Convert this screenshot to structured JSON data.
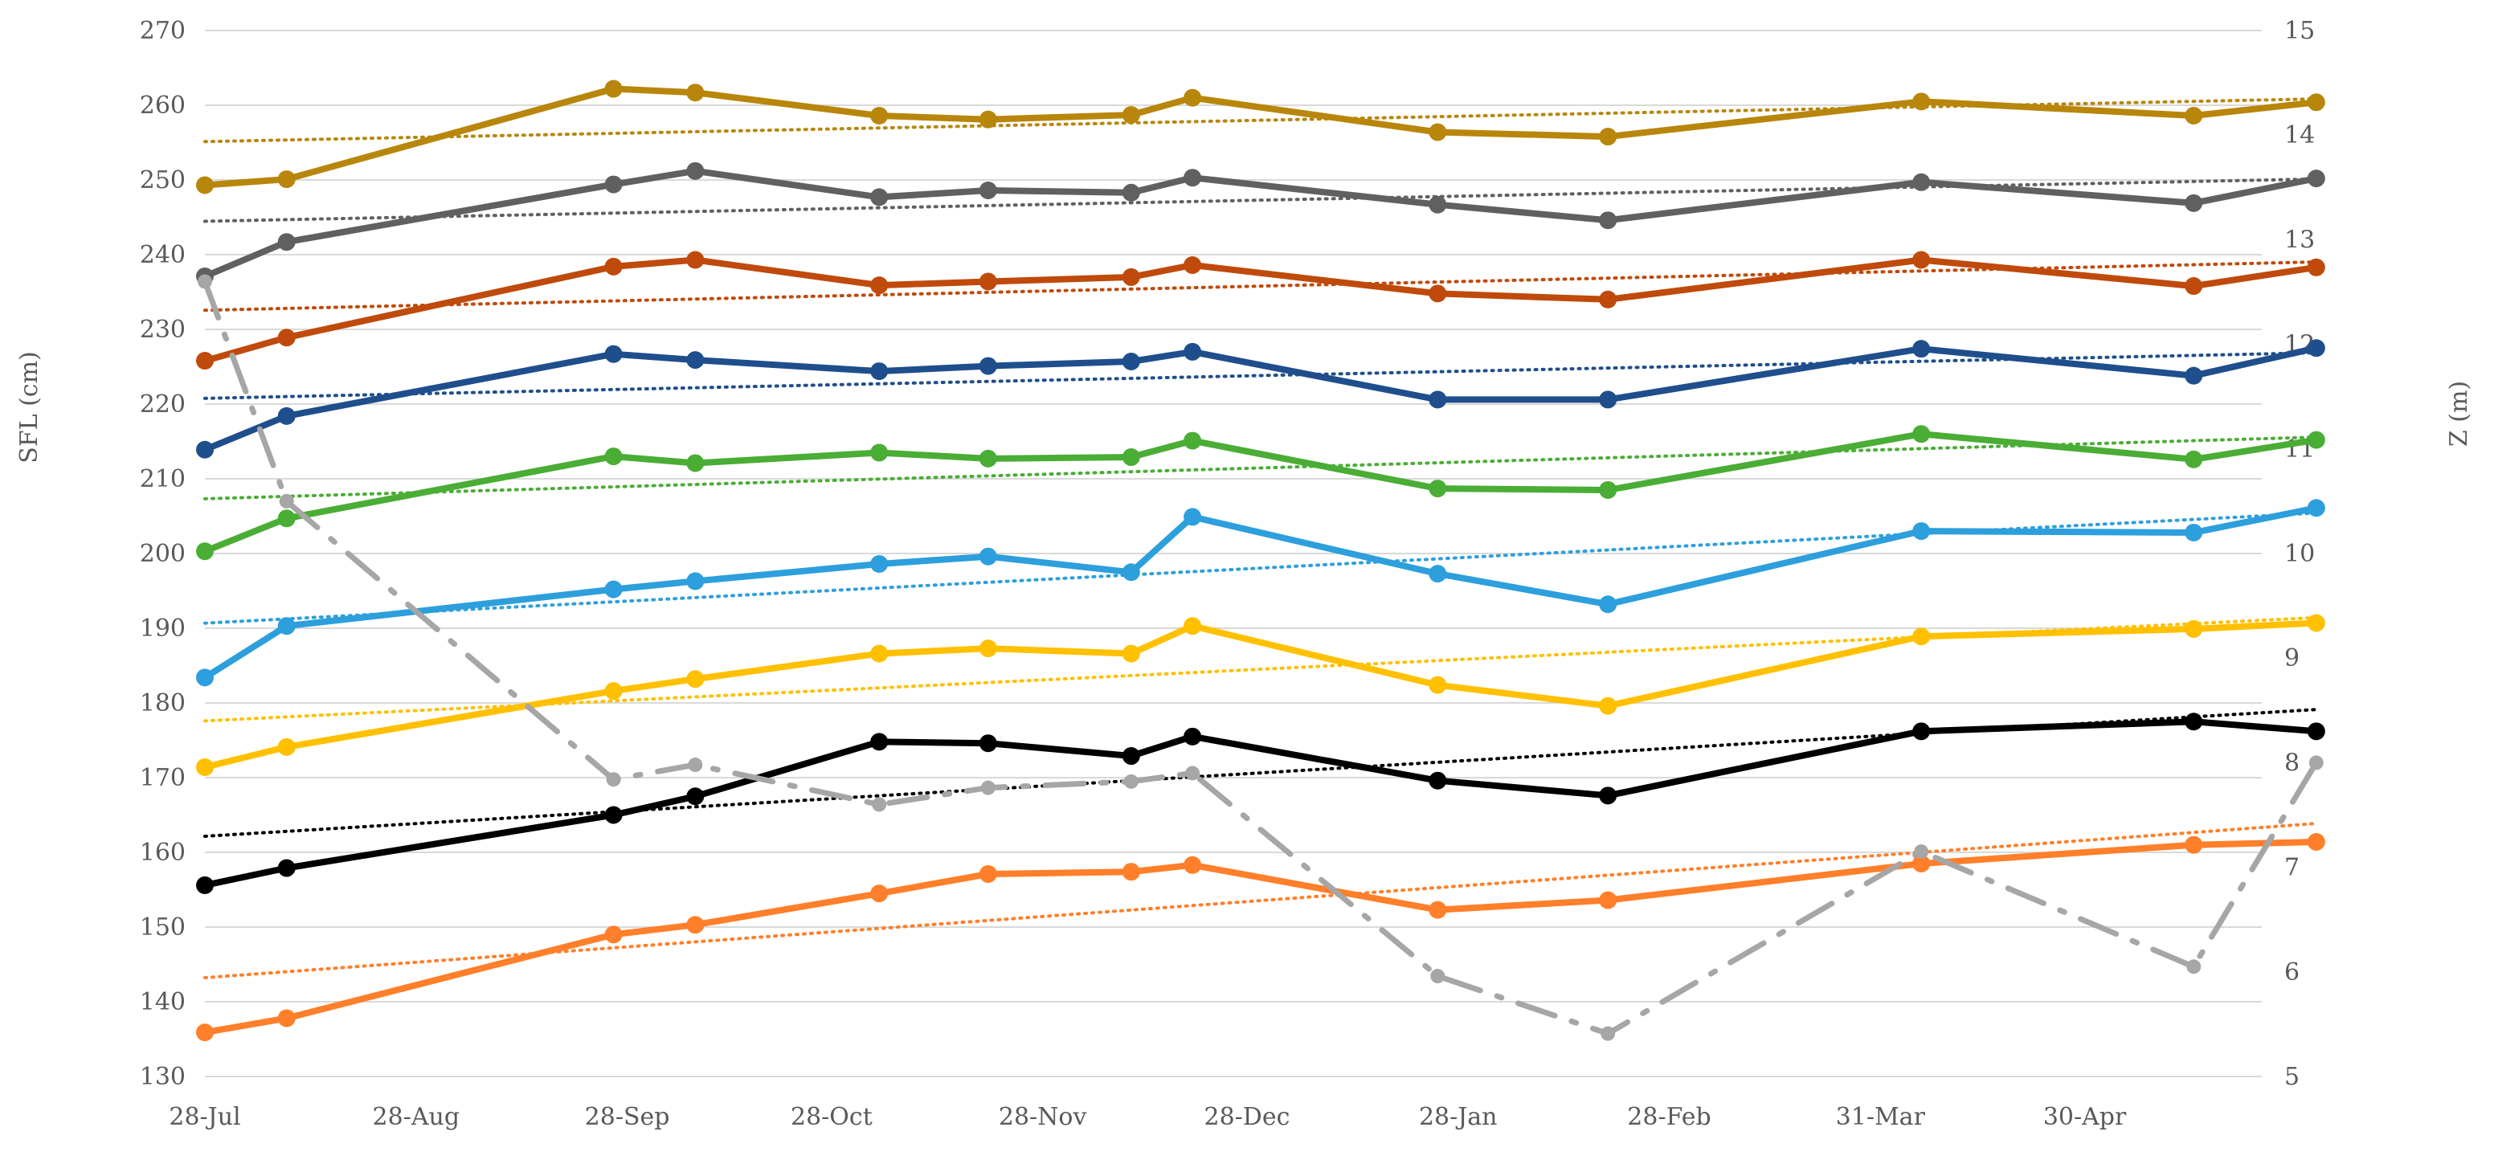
{
  "chart_data": {
    "type": "line",
    "title": "",
    "xlabel": "",
    "ylabel_left": "SFL (cm)",
    "ylabel_right": "Z (m)",
    "ylim_left": [
      130,
      270
    ],
    "ylim_right": [
      5,
      15
    ],
    "x_day_range": [
      0,
      302
    ],
    "x_tick_labels": [
      "28-Jul",
      "28-Aug",
      "28-Sep",
      "28-Oct",
      "28-Nov",
      "28-Dec",
      "28-Jan",
      "28-Feb",
      "31-Mar",
      "30-Apr"
    ],
    "x_tick_days": [
      0,
      31,
      62,
      92,
      123,
      153,
      184,
      215,
      246,
      276
    ],
    "y_left_ticks": [
      130,
      140,
      150,
      160,
      170,
      180,
      190,
      200,
      210,
      220,
      230,
      240,
      250,
      260,
      270
    ],
    "y_right_ticks": [
      5,
      6,
      7,
      8,
      9,
      10,
      11,
      12,
      13,
      14,
      15
    ],
    "x_days": [
      0,
      12,
      60,
      72,
      99,
      115,
      136,
      145,
      181,
      206,
      252,
      292,
      310
    ],
    "grid": true,
    "legend": "none",
    "series": [
      {
        "name": "gold",
        "color": "#b8860b",
        "axis": "left",
        "trend": true,
        "values": [
          249.3,
          250.1,
          262.2,
          261.7,
          258.6,
          258.1,
          258.7,
          261.0,
          256.4,
          255.8,
          260.5,
          258.6,
          260.4
        ]
      },
      {
        "name": "gray",
        "color": "#606060",
        "axis": "left",
        "trend": true,
        "values": [
          237.1,
          241.7,
          249.4,
          251.2,
          247.7,
          248.6,
          248.3,
          250.3,
          246.7,
          244.6,
          249.7,
          246.9,
          250.2
        ]
      },
      {
        "name": "dark orange",
        "color": "#bf4a0c",
        "axis": "left",
        "trend": true,
        "values": [
          225.8,
          228.9,
          238.4,
          239.3,
          235.9,
          236.4,
          237.0,
          238.6,
          234.8,
          234.0,
          239.3,
          235.8,
          238.3
        ]
      },
      {
        "name": "dark blue",
        "color": "#1f4e8c",
        "axis": "left",
        "trend": true,
        "values": [
          213.9,
          218.4,
          226.7,
          225.9,
          224.4,
          225.1,
          225.7,
          227.0,
          220.6,
          220.6,
          227.4,
          223.8,
          227.5
        ]
      },
      {
        "name": "green",
        "color": "#4aad35",
        "axis": "left",
        "trend": true,
        "values": [
          200.3,
          204.7,
          213.0,
          212.1,
          213.5,
          212.7,
          212.9,
          215.1,
          208.7,
          208.5,
          216.0,
          212.6,
          215.2
        ]
      },
      {
        "name": "light blue",
        "color": "#2d9fdc",
        "axis": "left",
        "trend": true,
        "values": [
          183.4,
          190.3,
          195.2,
          196.3,
          198.6,
          199.6,
          197.5,
          204.9,
          197.3,
          193.2,
          203.0,
          202.8,
          206.1
        ]
      },
      {
        "name": "yellow",
        "color": "#ffc000",
        "axis": "left",
        "trend": true,
        "values": [
          171.4,
          174.1,
          181.6,
          183.2,
          186.6,
          187.3,
          186.6,
          190.3,
          182.4,
          179.6,
          188.9,
          189.9,
          190.7
        ]
      },
      {
        "name": "black",
        "color": "#000000",
        "axis": "left",
        "trend": true,
        "values": [
          155.6,
          157.9,
          165.0,
          167.5,
          174.8,
          174.6,
          172.9,
          175.5,
          169.6,
          167.6,
          176.2,
          177.5,
          176.2
        ]
      },
      {
        "name": "orange",
        "color": "#ff7f2a",
        "axis": "left",
        "trend": true,
        "values": [
          135.9,
          137.8,
          149.0,
          150.3,
          154.5,
          157.1,
          157.4,
          158.3,
          152.3,
          153.6,
          158.5,
          161.0,
          161.4
        ]
      },
      {
        "name": "Z (m)",
        "color": "#a6a6a6",
        "axis": "right",
        "dash": "dash-dot",
        "trend": false,
        "values": [
          12.6,
          10.5,
          7.84,
          7.98,
          7.6,
          7.76,
          7.82,
          7.9,
          5.96,
          5.41,
          7.15,
          6.05,
          8.0
        ]
      }
    ]
  }
}
